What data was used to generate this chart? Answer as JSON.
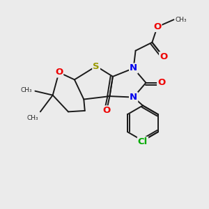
{
  "bg_color": "#ebebeb",
  "bond_color": "#1a1a1a",
  "S_color": "#999900",
  "N_color": "#0000ee",
  "O_color": "#ee0000",
  "Cl_color": "#00aa00",
  "figsize": [
    3.0,
    3.0
  ],
  "dpi": 100,
  "xlim": [
    0,
    10
  ],
  "ylim": [
    0,
    10
  ]
}
